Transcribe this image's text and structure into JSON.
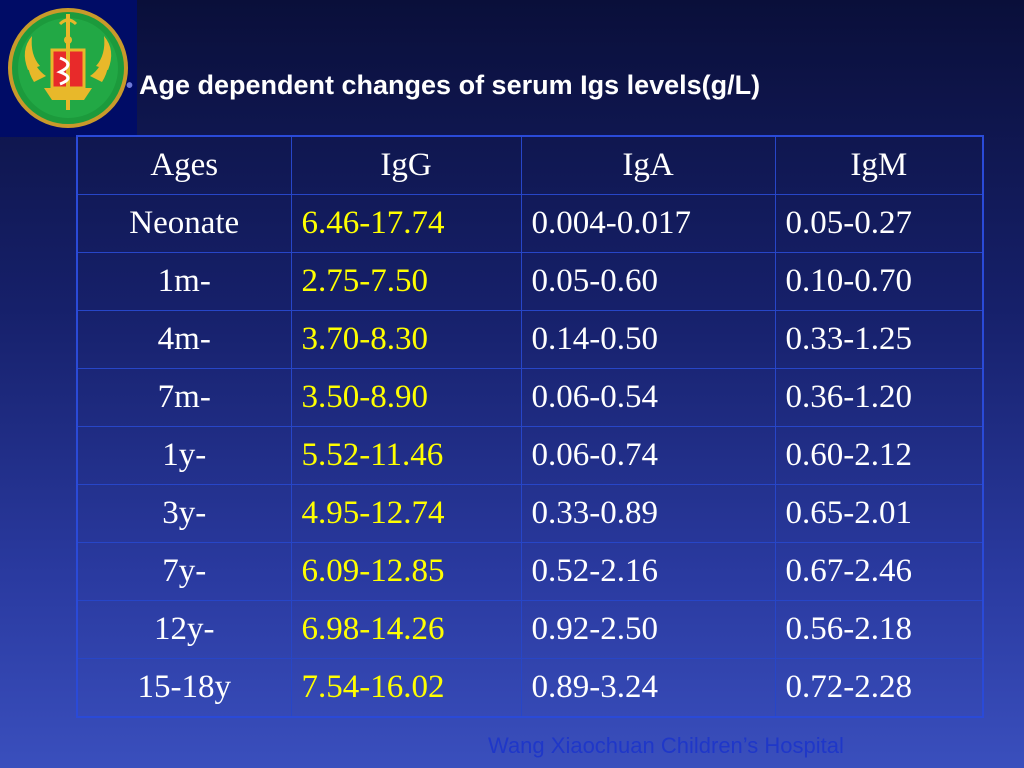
{
  "slide": {
    "title": "Age dependent changes of serum Igs levels(g/L)",
    "footer": "Wang Xiaochuan Children’s Hospital"
  },
  "table": {
    "headers": [
      "Ages",
      "IgG",
      "IgA",
      "IgM"
    ],
    "rows": [
      [
        "Neonate",
        "6.46-17.74",
        "0.004-0.017",
        "0.05-0.27"
      ],
      [
        "1m-",
        "2.75-7.50",
        "0.05-0.60",
        "0.10-0.70"
      ],
      [
        "4m-",
        "3.70-8.30",
        "0.14-0.50",
        "0.33-1.25"
      ],
      [
        "7m-",
        "3.50-8.90",
        "0.06-0.54",
        "0.36-1.20"
      ],
      [
        "1y-",
        "5.52-11.46",
        "0.06-0.74",
        "0.60-2.12"
      ],
      [
        "3y-",
        "4.95-12.74",
        "0.33-0.89",
        "0.65-2.01"
      ],
      [
        "7y-",
        "6.09-12.85",
        "0.52-2.16",
        "0.67-2.46"
      ],
      [
        "12y-",
        "6.98-14.26",
        "0.92-2.50",
        "0.56-2.18"
      ],
      [
        "15-18y",
        "7.54-16.02",
        "0.89-3.24",
        "0.72-2.28"
      ]
    ]
  },
  "colors": {
    "igg_highlight": "#ffff00",
    "text": "#ffffff",
    "border": "#2746c8",
    "footer": "#1f37c8"
  },
  "icons": {
    "logo": "hospital-emblem-icon",
    "bullet": "bullet-icon"
  }
}
